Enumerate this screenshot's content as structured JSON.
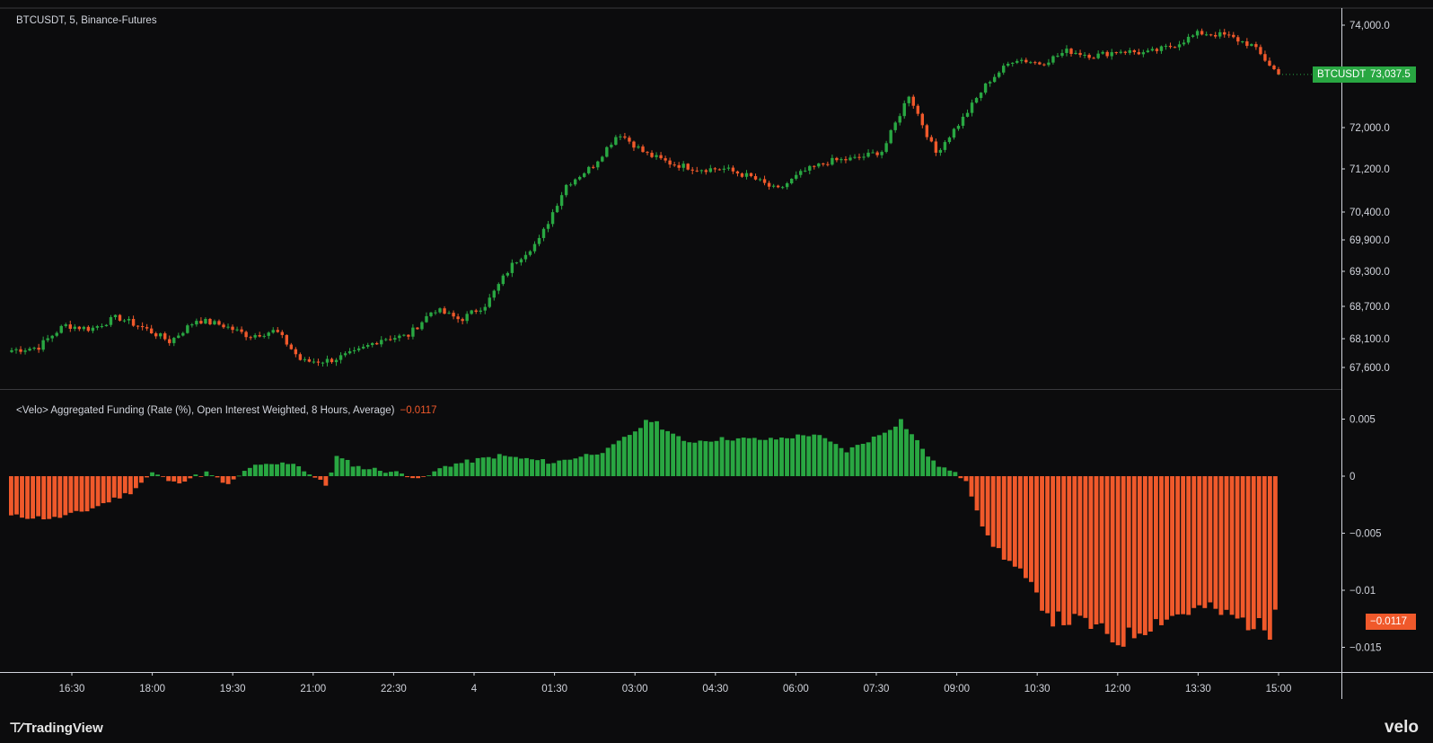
{
  "price_pane": {
    "legend": "BTCUSDT, 5, Binance-Futures",
    "symbol_tag": "BTCUSDT",
    "price_tag": "73,037.5"
  },
  "funding_pane": {
    "legend": "<Velo> Aggregated Funding (Rate (%), Open Interest Weighted, 8 Hours, Average)",
    "legend_value": "−0.0117",
    "value_tag": "−0.0117"
  },
  "footer": {
    "left_logo": "TradingView",
    "right_logo": "velo"
  },
  "colors": {
    "up": "#29a742",
    "down": "#f0592b",
    "background": "#0c0c0d",
    "divider": "#3a3a3d"
  },
  "chart_data": [
    {
      "type": "candlestick",
      "title": "BTCUSDT, 5, Binance-Futures",
      "y_axis_ticks": [
        {
          "value": 74000,
          "label": "74,000.0"
        },
        {
          "value": 72000,
          "label": "72,000.0"
        },
        {
          "value": 71200,
          "label": "71,200.0"
        },
        {
          "value": 70400,
          "label": "70,400.0"
        },
        {
          "value": 69900,
          "label": "69,900.0"
        },
        {
          "value": 69300,
          "label": "69,300.0"
        },
        {
          "value": 68700,
          "label": "68,700.0"
        },
        {
          "value": 68100,
          "label": "68,100.0"
        },
        {
          "value": 67600,
          "label": "67,600.0"
        }
      ],
      "x_axis_labels": [
        "16:30",
        "18:00",
        "19:30",
        "21:00",
        "22:30",
        "4",
        "01:30",
        "03:00",
        "04:30",
        "06:00",
        "07:30",
        "09:00",
        "10:30",
        "12:00",
        "13:30",
        "15:00"
      ],
      "close_series_approx": [
        67900,
        67950,
        68350,
        68280,
        68500,
        68300,
        68050,
        68450,
        68350,
        68150,
        68250,
        67700,
        67720,
        67850,
        68100,
        68150,
        68650,
        68450,
        68750,
        69450,
        69900,
        70900,
        71250,
        71900,
        71500,
        71300,
        71200,
        71200,
        71050,
        70800,
        71150,
        71350,
        71400,
        71550,
        72650,
        71500,
        72150,
        72900,
        73350,
        73250,
        73500,
        73400,
        73500,
        73450,
        73600,
        73850,
        73800,
        73600,
        73037.5
      ],
      "last_value": 73037.5
    },
    {
      "type": "bar",
      "title": "<Velo> Aggregated Funding (Rate (%), Open Interest Weighted, 8 Hours, Average)",
      "y_axis_ticks": [
        {
          "value": 0.005,
          "label": "0.005"
        },
        {
          "value": 0,
          "label": "0"
        },
        {
          "value": -0.005,
          "label": "−0.005"
        },
        {
          "value": -0.01,
          "label": "−0.01"
        },
        {
          "value": -0.015,
          "label": "−0.015"
        }
      ],
      "series_keyframes": [
        [
          0,
          -0.0035
        ],
        [
          8,
          -0.0037
        ],
        [
          14,
          -0.003
        ],
        [
          22,
          -0.0014
        ],
        [
          26,
          0.0003
        ],
        [
          30,
          -0.0006
        ],
        [
          36,
          0.0003
        ],
        [
          40,
          -0.0008
        ],
        [
          44,
          0.0008
        ],
        [
          52,
          0.0012
        ],
        [
          58,
          -0.0008
        ],
        [
          60,
          0.0017
        ],
        [
          64,
          0.0008
        ],
        [
          70,
          0.0004
        ],
        [
          76,
          -0.0002
        ],
        [
          80,
          0.0009
        ],
        [
          90,
          0.0018
        ],
        [
          100,
          0.0012
        ],
        [
          110,
          0.0023
        ],
        [
          118,
          0.005
        ],
        [
          124,
          0.003
        ],
        [
          132,
          0.0033
        ],
        [
          140,
          0.0032
        ],
        [
          148,
          0.0037
        ],
        [
          154,
          0.0022
        ],
        [
          160,
          0.0036
        ],
        [
          164,
          0.0049
        ],
        [
          170,
          0.0012
        ],
        [
          176,
          -0.0003
        ],
        [
          180,
          -0.0055
        ],
        [
          186,
          -0.0085
        ],
        [
          192,
          -0.0125
        ],
        [
          198,
          -0.0128
        ],
        [
          204,
          -0.0145
        ],
        [
          212,
          -0.0125
        ],
        [
          220,
          -0.0115
        ],
        [
          226,
          -0.0125
        ],
        [
          233,
          -0.0137
        ]
      ],
      "bar_count": 234,
      "last_value": -0.0117
    }
  ]
}
